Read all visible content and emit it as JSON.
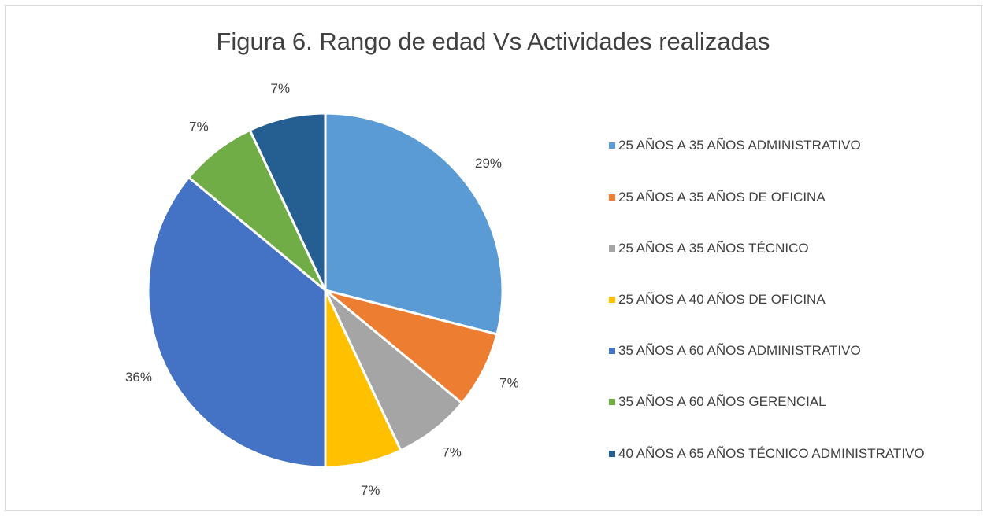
{
  "chart_data": {
    "type": "pie",
    "title": "Figura 6. Rango de edad Vs Actividades realizadas",
    "categories": [
      "25 AÑOS A 35 AÑOS ADMINISTRATIVO",
      "25 AÑOS A 35 AÑOS DE OFICINA",
      "25 AÑOS A 35 AÑOS TÉCNICO",
      "25 AÑOS A 40 AÑOS DE OFICINA",
      "35 AÑOS A 60 AÑOS ADMINISTRATIVO",
      "35 AÑOS A 60 AÑOS GERENCIAL",
      "40 AÑOS A 65 AÑOS TÉCNICO ADMINISTRATIVO"
    ],
    "values": [
      29,
      7,
      7,
      7,
      36,
      7,
      7
    ],
    "value_labels": [
      "29%",
      "7%",
      "7%",
      "7%",
      "36%",
      "7%",
      "7%"
    ],
    "colors": [
      "#5b9bd5",
      "#ed7d31",
      "#a5a5a5",
      "#ffc000",
      "#4472c4",
      "#70ad47",
      "#255e91"
    ],
    "legend": "right"
  }
}
